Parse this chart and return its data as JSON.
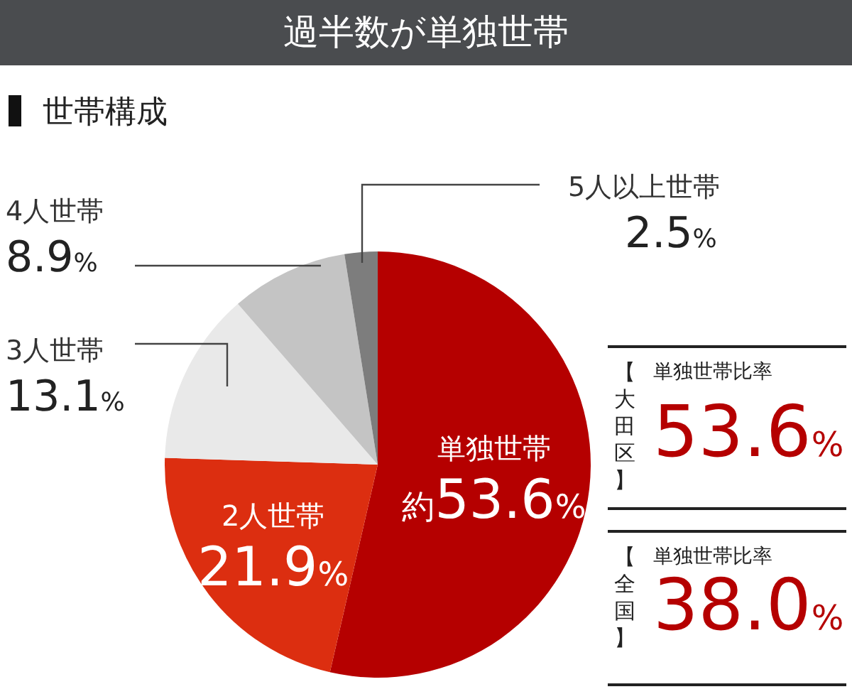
{
  "chart_data": {
    "type": "pie",
    "title": "過半数が単独世帯",
    "subtitle": "世帯構成",
    "categories": [
      "単独世帯",
      "2人世帯",
      "3人世帯",
      "4人世帯",
      "5人以上世帯"
    ],
    "values": [
      53.6,
      21.9,
      13.1,
      8.9,
      2.5
    ],
    "value_labels": [
      "約53.6%",
      "21.9%",
      "13.1%",
      "8.9%",
      "2.5%"
    ],
    "colors": [
      "#b50000",
      "#dc2e10",
      "#e9e9e9",
      "#c4c4c4",
      "#7d7d7d"
    ],
    "annotations": [
      "【大田区】",
      "単独世帯比率",
      "53.6%",
      "【全国】",
      "単独世帯比率",
      "38.0%"
    ],
    "legend": false
  }
}
